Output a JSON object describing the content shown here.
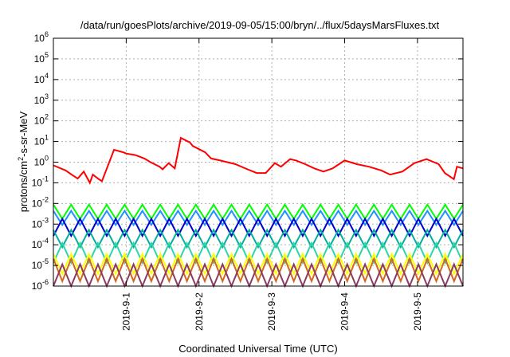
{
  "chart_data": {
    "type": "line",
    "title": "/data/run/goesPlots/archive/2019-09-05/15:00/bryn/../flux/5daysMarsFluxes.txt",
    "xlabel": "Coordinated Universal Time (UTC)",
    "ylabel_prefix": "protons/cm",
    "ylabel_sup": "2",
    "ylabel_suffix": "-s-sr-MeV",
    "y_scale": "log",
    "ylim": [
      1e-06,
      1000000.0
    ],
    "xlim": [
      "2019-08-31T00:00",
      "2019-09-05T15:00"
    ],
    "grid": true,
    "x_ticks": [
      {
        "label": "2019-9-1",
        "t": "2019-09-01"
      },
      {
        "label": "2019-9-2",
        "t": "2019-09-02"
      },
      {
        "label": "2019-9-3",
        "t": "2019-09-03"
      },
      {
        "label": "2019-9-4",
        "t": "2019-09-04"
      },
      {
        "label": "2019-9-5",
        "t": "2019-09-05"
      }
    ],
    "y_ticks": [
      {
        "base": "10",
        "exp": "6",
        "value": 1000000.0
      },
      {
        "base": "10",
        "exp": "5",
        "value": 100000.0
      },
      {
        "base": "10",
        "exp": "4",
        "value": 10000.0
      },
      {
        "base": "10",
        "exp": "3",
        "value": 1000.0
      },
      {
        "base": "10",
        "exp": "2",
        "value": 100.0
      },
      {
        "base": "10",
        "exp": "1",
        "value": 10.0
      },
      {
        "base": "10",
        "exp": "0",
        "value": 1
      },
      {
        "base": "10",
        "exp": "-1",
        "value": 0.1
      },
      {
        "base": "10",
        "exp": "-2",
        "value": 0.01
      },
      {
        "base": "10",
        "exp": "-3",
        "value": 0.001
      },
      {
        "base": "10",
        "exp": "-4",
        "value": 0.0001
      },
      {
        "base": "10",
        "exp": "-5",
        "value": 1e-05
      },
      {
        "base": "10",
        "exp": "-6",
        "value": 1e-06
      }
    ],
    "series": [
      {
        "color": "#ff0000",
        "x": [
          "2019-08-31T00:00",
          "2019-08-31T04:00",
          "2019-08-31T06:00",
          "2019-08-31T08:00",
          "2019-08-31T10:00",
          "2019-08-31T13:00",
          "2019-08-31T15:00",
          "2019-08-31T16:00",
          "2019-08-31T12:00",
          "2019-08-31T20:00",
          "2019-08-31T23:00",
          "2019-09-01T00:00",
          "2019-09-01T03:00",
          "2019-09-01T06:00",
          "2019-09-01T08:00",
          "2019-09-01T11:00",
          "2019-09-01T12:00",
          "2019-09-01T14:00",
          "2019-09-01T16:00",
          "2019-09-01T18:00",
          "2019-09-01T21:00",
          "2019-09-01T22:00",
          "2019-09-02T02:00",
          "2019-09-02T04:00",
          "2019-09-02T07:00",
          "2019-09-02T12:00",
          "2019-09-02T16:00",
          "2019-09-02T19:00",
          "2019-09-02T22:00",
          "2019-09-03T01:00",
          "2019-09-03T03:00",
          "2019-09-03T06:00",
          "2019-09-03T08:00",
          "2019-09-03T11:00",
          "2019-09-03T14:00",
          "2019-09-03T17:00",
          "2019-09-03T20:00",
          "2019-09-04T00:00",
          "2019-09-04T04:00",
          "2019-09-04T08:00",
          "2019-09-04T12:00",
          "2019-09-04T15:00",
          "2019-09-04T19:00",
          "2019-09-04T23:00",
          "2019-09-05T03:00",
          "2019-09-05T07:00",
          "2019-09-05T09:00",
          "2019-09-05T12:00",
          "2019-09-05T13:00",
          "2019-09-05T15:00"
        ],
        "y": [
          0.7,
          0.4,
          0.25,
          0.16,
          0.35,
          0.25,
          0.15,
          0.12,
          0.1,
          4.0,
          3.0,
          2.6,
          2.2,
          1.5,
          1.0,
          0.6,
          0.45,
          0.9,
          0.5,
          15.0,
          9.0,
          6.0,
          3.0,
          1.5,
          1.2,
          0.8,
          0.45,
          0.3,
          0.3,
          0.9,
          0.6,
          1.4,
          1.2,
          0.8,
          0.5,
          0.35,
          0.5,
          1.2,
          0.8,
          0.6,
          0.4,
          0.25,
          0.35,
          0.9,
          1.4,
          0.8,
          0.3,
          0.15,
          0.6,
          0.5
        ]
      },
      {
        "color": "#00ff00",
        "base": 0.004,
        "amp": 2.2,
        "phase": 0.0
      },
      {
        "color": "#1e90ff",
        "base": 0.002,
        "amp": 2.2,
        "phase": 0.3
      },
      {
        "color": "#0000cd",
        "base": 0.0007,
        "amp": 2.6,
        "phase": 0.6
      },
      {
        "color": "#00b09b",
        "base": 0.0002,
        "amp": 2.6,
        "phase": 0.2
      },
      {
        "color": "#2ed6a8",
        "base": 4e-05,
        "amp": 3.0,
        "phase": 0.5
      },
      {
        "color": "#ffff00",
        "base": 1.2e-05,
        "amp": 3.0,
        "phase": 0.1
      },
      {
        "color": "#d2691e",
        "base": 6e-06,
        "amp": 3.5,
        "phase": 0.7
      },
      {
        "color": "#8b3a62",
        "base": 3e-06,
        "amp": 3.8,
        "phase": 0.4
      }
    ]
  }
}
